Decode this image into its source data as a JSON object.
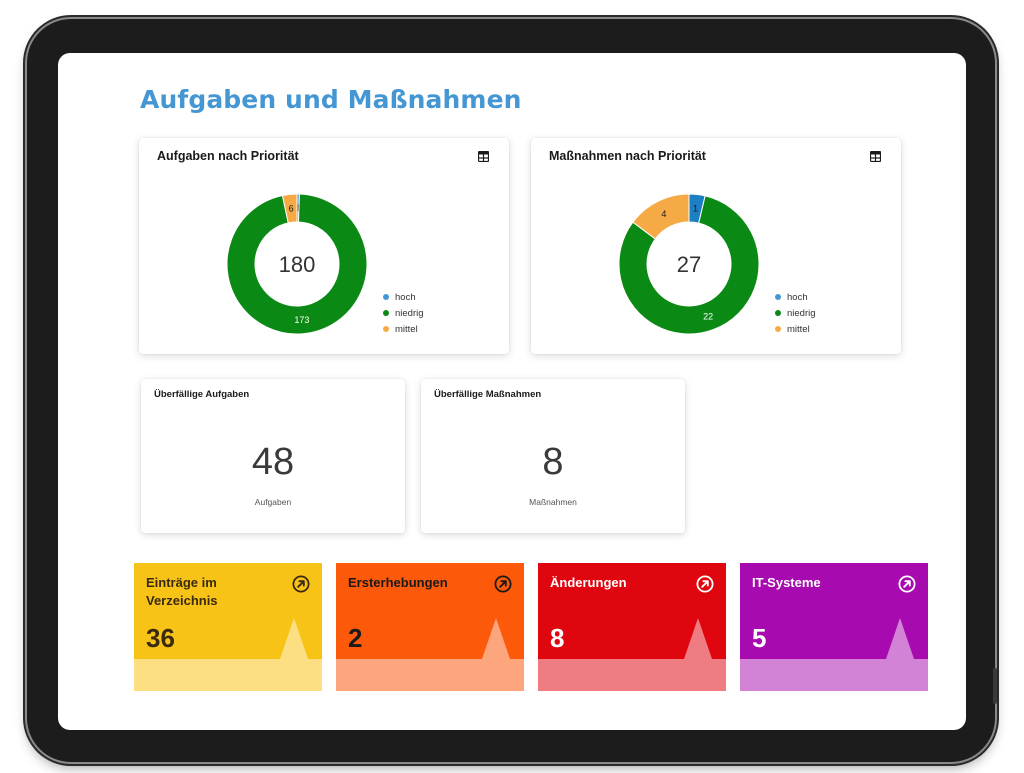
{
  "page": {
    "title": "Aufgaben und Maßnahmen"
  },
  "donut_cards": [
    {
      "title": "Aufgaben nach Priorität",
      "total": "180",
      "segments": [
        {
          "name": "hoch",
          "value": 1,
          "label": "1",
          "color": "#4597d3"
        },
        {
          "name": "niedrig",
          "value": 173,
          "label": "173",
          "color": "#0a8a14"
        },
        {
          "name": "mittel",
          "value": 6,
          "label": "6",
          "color": "#f5aa45"
        }
      ],
      "legend": [
        "hoch",
        "niedrig",
        "mittel"
      ]
    },
    {
      "title": "Maßnahmen nach Priorität",
      "total": "27",
      "segments": [
        {
          "name": "hoch",
          "value": 1,
          "label": "1",
          "color": "#1c7fc4"
        },
        {
          "name": "niedrig",
          "value": 22,
          "label": "22",
          "color": "#0a8a14"
        },
        {
          "name": "mittel",
          "value": 4,
          "label": "4",
          "color": "#f5aa45"
        }
      ],
      "legend": [
        "hoch",
        "niedrig",
        "mittel"
      ]
    }
  ],
  "kpi_cards": [
    {
      "title": "Überfällige Aufgaben",
      "value": "48",
      "unit": "Aufgaben"
    },
    {
      "title": "Überfällige Maßnahmen",
      "value": "8",
      "unit": "Maßnahmen"
    }
  ],
  "tiles": [
    {
      "label": "Einträge im Verzeichnis",
      "value": "36",
      "color": "#f7c317",
      "band": "#fbdf82",
      "text": "#3a2a10",
      "icon_color": "#3a2a10",
      "icon": "arrow-up-right-circle-icon"
    },
    {
      "label": "Ersterhebungen",
      "value": "2",
      "color": "#fc5a0a",
      "band": "#fda57c",
      "text": "#1a1a1a",
      "icon_color": "#1a1a1a",
      "icon": "arrow-up-right-circle-icon"
    },
    {
      "label": "Änderungen",
      "value": "8",
      "color": "#e0060f",
      "band": "#ef7c80",
      "text": "#ffffff",
      "icon_color": "#ffffff",
      "icon": "arrow-up-right-circle-icon"
    },
    {
      "label": "IT-Systeme",
      "value": "5",
      "color": "#a70aae",
      "band": "#d383d5",
      "text": "#ffffff",
      "icon_color": "#ffffff",
      "icon": "arrow-up-right-circle-icon"
    }
  ],
  "chart_data": [
    {
      "type": "pie",
      "title": "Aufgaben nach Priorität",
      "categories": [
        "hoch",
        "niedrig",
        "mittel"
      ],
      "values": [
        1,
        173,
        6
      ],
      "center_total": 180,
      "legend": "right"
    },
    {
      "type": "pie",
      "title": "Maßnahmen nach Priorität",
      "categories": [
        "hoch",
        "niedrig",
        "mittel"
      ],
      "values": [
        1,
        22,
        4
      ],
      "center_total": 27,
      "legend": "right"
    }
  ]
}
